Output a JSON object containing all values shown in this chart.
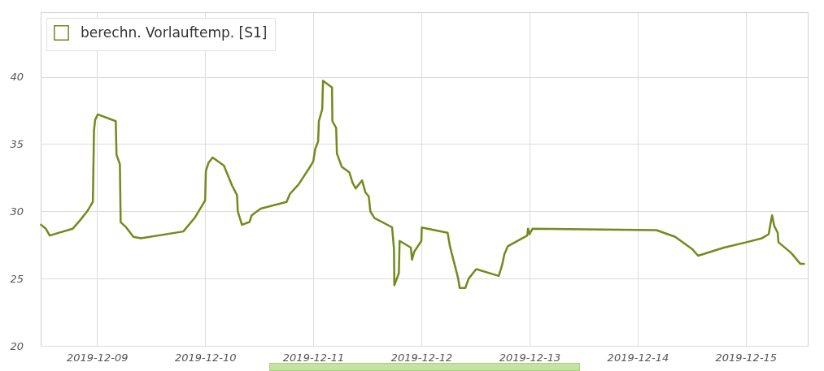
{
  "chart_data": {
    "type": "line",
    "legend": "top left",
    "grid": true,
    "xlim": [
      "2019-12-08T11:30",
      "2019-12-15T13:45"
    ],
    "ylim": [
      20,
      44.8
    ],
    "xticks": [
      "2019-12-09",
      "2019-12-10",
      "2019-12-11",
      "2019-12-12",
      "2019-12-13",
      "2019-12-14",
      "2019-12-15"
    ],
    "yticks": [
      20,
      25,
      30,
      35,
      40
    ],
    "x": [
      "2019-12-08T11:35",
      "2019-12-08T12:40",
      "2019-12-08T13:30",
      "2019-12-08T18:35",
      "2019-12-08T20:10",
      "2019-12-08T21:50",
      "2019-12-08T23:05",
      "2019-12-08T23:20",
      "2019-12-08T23:35",
      "2019-12-09T00:10",
      "2019-12-09T04:10",
      "2019-12-09T04:20",
      "2019-12-09T05:05",
      "2019-12-09T05:15",
      "2019-12-09T06:30",
      "2019-12-09T08:05",
      "2019-12-09T09:45",
      "2019-12-09T19:10",
      "2019-12-09T21:40",
      "2019-12-10T00:00",
      "2019-12-10T00:10",
      "2019-12-10T00:45",
      "2019-12-10T01:40",
      "2019-12-10T04:10",
      "2019-12-10T06:00",
      "2019-12-10T07:05",
      "2019-12-10T07:15",
      "2019-12-10T08:10",
      "2019-12-10T09:50",
      "2019-12-10T10:20",
      "2019-12-10T12:20",
      "2019-12-10T18:05",
      "2019-12-10T18:50",
      "2019-12-10T20:45",
      "2019-12-10T23:05",
      "2019-12-11T00:00",
      "2019-12-11T00:25",
      "2019-12-11T01:05",
      "2019-12-11T01:15",
      "2019-12-11T02:00",
      "2019-12-11T02:10",
      "2019-12-11T04:10",
      "2019-12-11T04:15",
      "2019-12-11T05:05",
      "2019-12-11T05:15",
      "2019-12-11T06:20",
      "2019-12-11T08:00",
      "2019-12-11T08:45",
      "2019-12-11T09:25",
      "2019-12-11T10:50",
      "2019-12-11T11:35",
      "2019-12-11T12:20",
      "2019-12-11T12:40",
      "2019-12-11T13:35",
      "2019-12-11T17:00",
      "2019-12-11T17:30",
      "2019-12-11T17:55",
      "2019-12-11T18:00",
      "2019-12-11T19:00",
      "2019-12-11T19:10",
      "2019-12-11T21:40",
      "2019-12-11T21:55",
      "2019-12-11T22:25",
      "2019-12-12T00:00",
      "2019-12-12T00:05",
      "2019-12-12T05:50",
      "2019-12-12T06:20",
      "2019-12-12T07:25",
      "2019-12-12T08:10",
      "2019-12-12T08:30",
      "2019-12-12T09:45",
      "2019-12-12T10:30",
      "2019-12-12T12:10",
      "2019-12-12T17:10",
      "2019-12-12T17:55",
      "2019-12-12T18:25",
      "2019-12-12T19:10",
      "2019-12-12T23:30",
      "2019-12-12T23:40",
      "2019-12-13T00:00",
      "2019-12-13T00:40",
      "2019-12-14T04:10",
      "2019-12-14T08:20",
      "2019-12-14T12:05",
      "2019-12-14T13:25",
      "2019-12-14T19:10",
      "2019-12-15T00:10",
      "2019-12-15T03:35",
      "2019-12-15T05:05",
      "2019-12-15T05:30",
      "2019-12-15T05:50",
      "2019-12-15T06:20",
      "2019-12-15T07:05",
      "2019-12-15T07:15",
      "2019-12-15T10:05",
      "2019-12-15T12:05",
      "2019-12-15T12:55"
    ],
    "series": [
      {
        "name": "berechn. Vorlauftemp. [S1]",
        "color": "#738a1c",
        "values": [
          29.0,
          28.7,
          28.2,
          28.7,
          29.3,
          30.0,
          30.7,
          36.0,
          36.8,
          37.2,
          36.7,
          34.2,
          33.5,
          29.2,
          28.8,
          28.1,
          28.0,
          28.5,
          29.5,
          30.8,
          33.0,
          33.6,
          34.0,
          33.4,
          31.9,
          31.2,
          30.0,
          29.0,
          29.2,
          29.7,
          30.2,
          30.7,
          31.3,
          32.0,
          33.2,
          33.7,
          34.6,
          35.2,
          36.7,
          37.6,
          39.7,
          39.2,
          36.7,
          36.2,
          34.3,
          33.3,
          32.9,
          32.1,
          31.7,
          32.3,
          31.4,
          31.1,
          30.0,
          29.5,
          28.9,
          28.8,
          27.2,
          24.5,
          25.4,
          27.8,
          27.3,
          26.4,
          27.0,
          27.8,
          28.8,
          28.4,
          27.4,
          26.0,
          25.0,
          24.3,
          24.3,
          25.0,
          25.7,
          25.2,
          26.0,
          26.8,
          27.4,
          28.2,
          28.7,
          28.3,
          28.7,
          28.6,
          28.1,
          27.2,
          26.7,
          27.3,
          27.7,
          28.0,
          28.3,
          29.1,
          29.7,
          28.9,
          28.4,
          27.7,
          26.9,
          26.1,
          26.1
        ]
      }
    ]
  }
}
